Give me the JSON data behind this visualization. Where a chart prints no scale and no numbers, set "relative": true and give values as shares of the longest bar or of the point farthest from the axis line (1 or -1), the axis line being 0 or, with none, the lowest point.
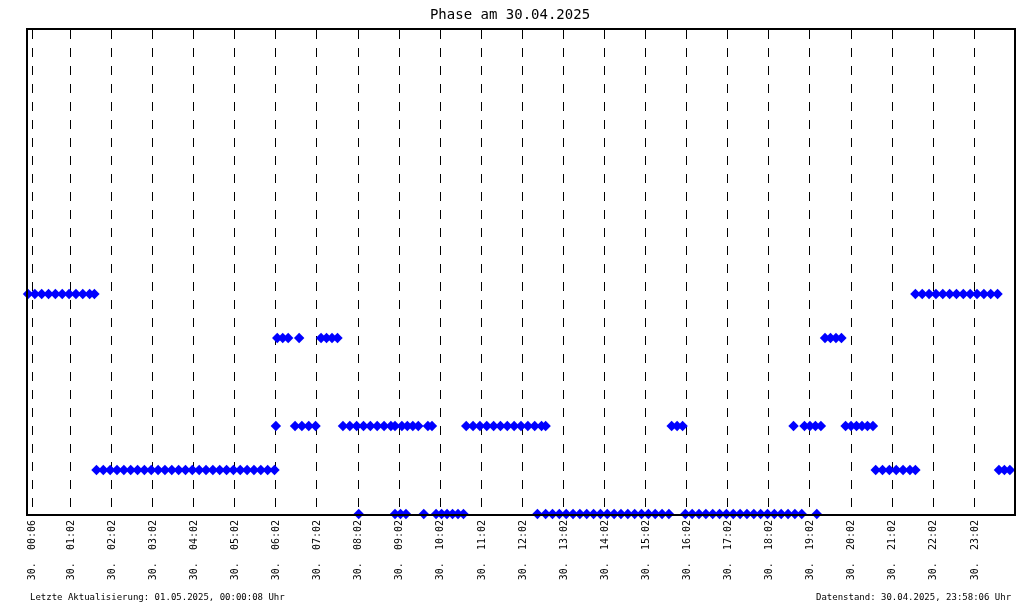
{
  "chart_data": {
    "type": "scatter",
    "title": "Phase am 30.04.2025",
    "relative": true,
    "marker": "diamond",
    "grid": "x",
    "annotations": [
      "Letzte Aktualisierung: 01.05.2025, 00:00:08 Uhr",
      "Datenstand: 30.04.2025, 23:58:06 Uhr"
    ],
    "xlim": [
      "2025-04-30T00:00",
      "2025-05-01T00:00"
    ],
    "xticks": [
      {
        "value": "2025-04-30T00:06",
        "label": "30.  00:06"
      },
      {
        "value": "2025-04-30T01:02",
        "label": "30.  01:02"
      },
      {
        "value": "2025-04-30T02:02",
        "label": "30.  02:02"
      },
      {
        "value": "2025-04-30T03:02",
        "label": "30.  03:02"
      },
      {
        "value": "2025-04-30T04:02",
        "label": "30.  04:02"
      },
      {
        "value": "2025-04-30T05:02",
        "label": "30.  05:02"
      },
      {
        "value": "2025-04-30T06:02",
        "label": "30.  06:02"
      },
      {
        "value": "2025-04-30T07:02",
        "label": "30.  07:02"
      },
      {
        "value": "2025-04-30T08:02",
        "label": "30.  08:02"
      },
      {
        "value": "2025-04-30T09:02",
        "label": "30.  09:02"
      },
      {
        "value": "2025-04-30T10:02",
        "label": "30.  10:02"
      },
      {
        "value": "2025-04-30T11:02",
        "label": "30.  11:02"
      },
      {
        "value": "2025-04-30T12:02",
        "label": "30.  12:02"
      },
      {
        "value": "2025-04-30T13:02",
        "label": "30.  13:02"
      },
      {
        "value": "2025-04-30T14:02",
        "label": "30.  14:02"
      },
      {
        "value": "2025-04-30T15:02",
        "label": "30.  15:02"
      },
      {
        "value": "2025-04-30T16:02",
        "label": "30.  16:02"
      },
      {
        "value": "2025-04-30T17:02",
        "label": "30.  17:02"
      },
      {
        "value": "2025-04-30T18:02",
        "label": "30.  18:02"
      },
      {
        "value": "2025-04-30T19:02",
        "label": "30.  19:02"
      },
      {
        "value": "2025-04-30T20:02",
        "label": "30.  20:02"
      },
      {
        "value": "2025-04-30T21:02",
        "label": "30.  21:02"
      },
      {
        "value": "2025-04-30T22:02",
        "label": "30.  22:02"
      },
      {
        "value": "2025-04-30T23:02",
        "label": "30.  23:02"
      }
    ],
    "series": [
      {
        "color": "#0000ff",
        "x": [
          "2025-04-30T00:00",
          "2025-04-30T00:10",
          "2025-04-30T00:20",
          "2025-04-30T00:30",
          "2025-04-30T00:40",
          "2025-04-30T00:50",
          "2025-04-30T01:00",
          "2025-04-30T01:10",
          "2025-04-30T01:20",
          "2025-04-30T01:30",
          "2025-04-30T01:37",
          "2025-04-30T01:40",
          "2025-04-30T01:50",
          "2025-04-30T02:00",
          "2025-04-30T02:10",
          "2025-04-30T02:20",
          "2025-04-30T02:30",
          "2025-04-30T02:40",
          "2025-04-30T02:50",
          "2025-04-30T03:00",
          "2025-04-30T03:10",
          "2025-04-30T03:20",
          "2025-04-30T03:30",
          "2025-04-30T03:40",
          "2025-04-30T03:50",
          "2025-04-30T04:00",
          "2025-04-30T04:10",
          "2025-04-30T04:20",
          "2025-04-30T04:30",
          "2025-04-30T04:40",
          "2025-04-30T04:50",
          "2025-04-30T05:00",
          "2025-04-30T05:10",
          "2025-04-30T05:20",
          "2025-04-30T05:30",
          "2025-04-30T05:40",
          "2025-04-30T05:50",
          "2025-04-30T06:00",
          "2025-04-30T06:02",
          "2025-04-30T06:04",
          "2025-04-30T06:12",
          "2025-04-30T06:20",
          "2025-04-30T06:36",
          "2025-04-30T06:30",
          "2025-04-30T06:40",
          "2025-04-30T06:50",
          "2025-04-30T07:00",
          "2025-04-30T07:08",
          "2025-04-30T07:16",
          "2025-04-30T07:24",
          "2025-04-30T07:32",
          "2025-04-30T07:40",
          "2025-04-30T07:50",
          "2025-04-30T08:00",
          "2025-04-30T08:10",
          "2025-04-30T08:20",
          "2025-04-30T08:30",
          "2025-04-30T08:40",
          "2025-04-30T08:50",
          "2025-04-30T08:56",
          "2025-04-30T08:03",
          "2025-04-30T08:56",
          "2025-04-30T09:04",
          "2025-04-30T09:12",
          "2025-04-30T09:06",
          "2025-04-30T09:14",
          "2025-04-30T09:22",
          "2025-04-30T09:30",
          "2025-04-30T09:44",
          "2025-04-30T09:50",
          "2025-04-30T09:38",
          "2025-04-30T09:56",
          "2025-04-30T10:04",
          "2025-04-30T10:12",
          "2025-04-30T10:20",
          "2025-04-30T10:28",
          "2025-04-30T10:36",
          "2025-04-30T10:40",
          "2025-04-30T10:50",
          "2025-04-30T11:00",
          "2025-04-30T11:10",
          "2025-04-30T11:20",
          "2025-04-30T11:30",
          "2025-04-30T11:40",
          "2025-04-30T11:50",
          "2025-04-30T12:00",
          "2025-04-30T12:10",
          "2025-04-30T12:20",
          "2025-04-30T12:30",
          "2025-04-30T12:36",
          "2025-04-30T12:24",
          "2025-04-30T12:36",
          "2025-04-30T12:46",
          "2025-04-30T12:56",
          "2025-04-30T13:06",
          "2025-04-30T13:16",
          "2025-04-30T13:26",
          "2025-04-30T13:36",
          "2025-04-30T13:46",
          "2025-04-30T13:56",
          "2025-04-30T14:06",
          "2025-04-30T14:16",
          "2025-04-30T14:26",
          "2025-04-30T14:36",
          "2025-04-30T14:46",
          "2025-04-30T14:56",
          "2025-04-30T15:06",
          "2025-04-30T15:16",
          "2025-04-30T15:26",
          "2025-04-30T15:36",
          "2025-04-30T15:40",
          "2025-04-30T15:48",
          "2025-04-30T15:56",
          "2025-04-30T16:00",
          "2025-04-30T16:10",
          "2025-04-30T16:20",
          "2025-04-30T16:30",
          "2025-04-30T16:40",
          "2025-04-30T16:50",
          "2025-04-30T17:00",
          "2025-04-30T17:10",
          "2025-04-30T17:20",
          "2025-04-30T17:30",
          "2025-04-30T17:40",
          "2025-04-30T17:50",
          "2025-04-30T18:00",
          "2025-04-30T18:10",
          "2025-04-30T18:20",
          "2025-04-30T18:30",
          "2025-04-30T18:40",
          "2025-04-30T18:50",
          "2025-04-30T18:38",
          "2025-04-30T18:54",
          "2025-04-30T19:02",
          "2025-04-30T19:10",
          "2025-04-30T19:18",
          "2025-04-30T19:12",
          "2025-04-30T19:24",
          "2025-04-30T19:32",
          "2025-04-30T19:40",
          "2025-04-30T19:48",
          "2025-04-30T19:54",
          "2025-04-30T20:02",
          "2025-04-30T20:10",
          "2025-04-30T20:18",
          "2025-04-30T20:26",
          "2025-04-30T20:34",
          "2025-04-30T20:38",
          "2025-04-30T20:48",
          "2025-04-30T20:58",
          "2025-04-30T21:08",
          "2025-04-30T21:18",
          "2025-04-30T21:28",
          "2025-04-30T21:36",
          "2025-04-30T21:36",
          "2025-04-30T21:46",
          "2025-04-30T21:56",
          "2025-04-30T22:06",
          "2025-04-30T22:16",
          "2025-04-30T22:26",
          "2025-04-30T22:36",
          "2025-04-30T22:46",
          "2025-04-30T22:56",
          "2025-04-30T23:06",
          "2025-04-30T23:16",
          "2025-04-30T23:26",
          "2025-04-30T23:36",
          "2025-04-30T23:38",
          "2025-04-30T23:46",
          "2025-04-30T23:54"
        ],
        "values": [
          1,
          1,
          1,
          1,
          1,
          1,
          1,
          1,
          1,
          1,
          1,
          0.2,
          0.2,
          0.2,
          0.2,
          0.2,
          0.2,
          0.2,
          0.2,
          0.2,
          0.2,
          0.2,
          0.2,
          0.2,
          0.2,
          0.2,
          0.2,
          0.2,
          0.2,
          0.2,
          0.2,
          0.2,
          0.2,
          0.2,
          0.2,
          0.2,
          0.2,
          0.2,
          0.4,
          0.8,
          0.8,
          0.8,
          0.8,
          0.4,
          0.4,
          0.4,
          0.4,
          0.8,
          0.8,
          0.8,
          0.8,
          0.4,
          0.4,
          0.4,
          0.4,
          0.4,
          0.4,
          0.4,
          0.4,
          0.4,
          0,
          0,
          0,
          0,
          0.4,
          0.4,
          0.4,
          0.4,
          0.4,
          0.4,
          0,
          0,
          0,
          0,
          0,
          0,
          0,
          0.4,
          0.4,
          0.4,
          0.4,
          0.4,
          0.4,
          0.4,
          0.4,
          0.4,
          0.4,
          0.4,
          0.4,
          0.4,
          0,
          0,
          0,
          0,
          0,
          0,
          0,
          0,
          0,
          0,
          0,
          0,
          0,
          0,
          0,
          0,
          0,
          0,
          0,
          0,
          0.4,
          0.4,
          0.4,
          0,
          0,
          0,
          0,
          0,
          0,
          0,
          0,
          0,
          0,
          0,
          0,
          0,
          0,
          0,
          0,
          0,
          0,
          0.4,
          0.4,
          0.4,
          0.4,
          0.4,
          0,
          0.8,
          0.8,
          0.8,
          0.8,
          0.4,
          0.4,
          0.4,
          0.4,
          0.4,
          0.4,
          0.2,
          0.2,
          0.2,
          0.2,
          0.2,
          0.2,
          0.2,
          1,
          1,
          1,
          1,
          1,
          1,
          1,
          1,
          1,
          1,
          1,
          1,
          1,
          0.2,
          0.2,
          0.2
        ]
      }
    ]
  }
}
